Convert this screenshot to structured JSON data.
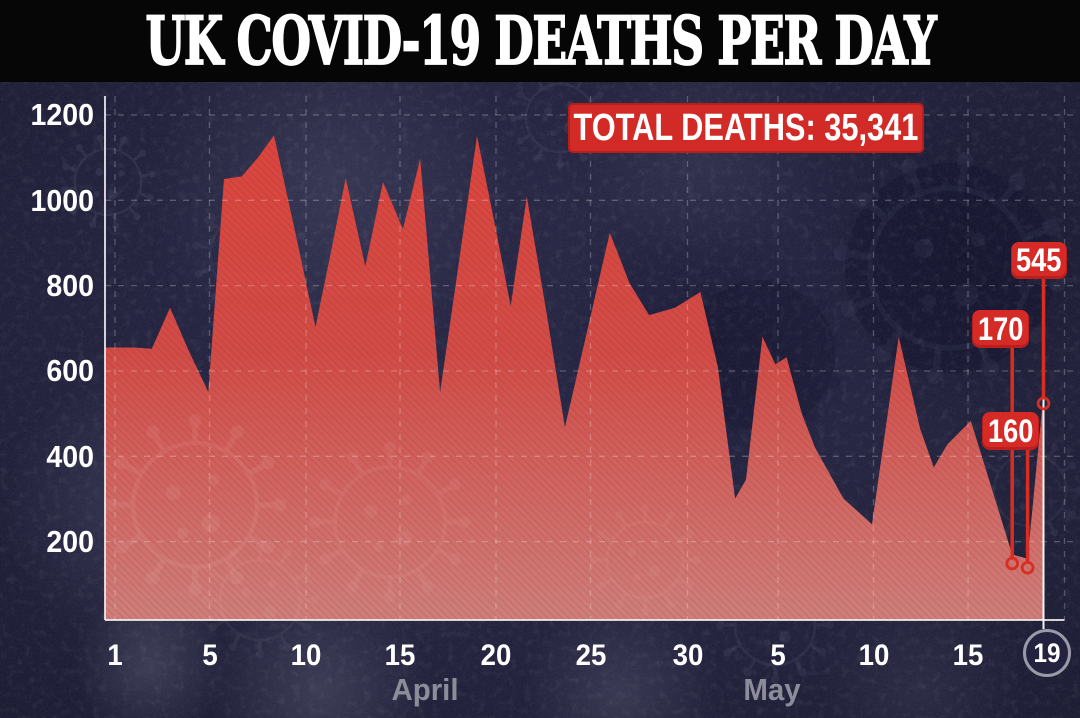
{
  "title": "UK COVID-19 DEATHS PER DAY",
  "total_deaths_label": "TOTAL DEATHS: 35,341",
  "annotations": [
    {
      "label": "545"
    },
    {
      "label": "170"
    },
    {
      "label": "160"
    }
  ],
  "x_axis": {
    "tick_labels": [
      "1",
      "5",
      "10",
      "15",
      "20",
      "25",
      "30",
      "5",
      "10",
      "15"
    ],
    "last_day_label": "19",
    "month_labels": [
      "April",
      "May"
    ]
  },
  "y_axis": {
    "tick_labels": [
      "1200",
      "1000",
      "800",
      "600",
      "400",
      "200"
    ]
  },
  "colors": {
    "background": "#262645",
    "banner": "#060606",
    "area_top": "#da453e",
    "area_bottom": "#ce7f7b",
    "annotation_red": "#d62a27",
    "marker_red": "#da2d22",
    "text_white": "#ffffff",
    "month_grey": "#8c8c9a"
  },
  "chart_data": {
    "type": "area",
    "title": "UK COVID-19 DEATHS PER DAY",
    "subtitle": "TOTAL DEATHS: 35,341",
    "ylim": [
      0,
      1300
    ],
    "grid": true,
    "categories": [
      "Apr 1",
      "Apr 2",
      "Apr 3",
      "Apr 4",
      "Apr 5",
      "Apr 6",
      "Apr 7",
      "Apr 8",
      "Apr 9",
      "Apr 10",
      "Apr 11",
      "Apr 12",
      "Apr 13",
      "Apr 14",
      "Apr 15",
      "Apr 16",
      "Apr 17",
      "Apr 18",
      "Apr 19",
      "Apr 20",
      "Apr 21",
      "Apr 22",
      "Apr 23",
      "Apr 24",
      "Apr 25",
      "Apr 26",
      "Apr 27",
      "Apr 28",
      "Apr 29",
      "Apr 30",
      "May 1",
      "May 2",
      "May 3",
      "May 4",
      "May 5",
      "May 6",
      "May 7",
      "May 8",
      "May 9",
      "May 10",
      "May 11",
      "May 12",
      "May 13",
      "May 14",
      "May 15",
      "May 16",
      "May 17",
      "May 18",
      "May 19"
    ],
    "values": [
      655,
      652,
      748,
      645,
      551,
      1050,
      1056,
      1100,
      1152,
      930,
      703,
      875,
      1052,
      845,
      1043,
      933,
      1097,
      550,
      850,
      1151,
      918,
      752,
      1009,
      740,
      468,
      695,
      924,
      806,
      731,
      748,
      785,
      610,
      301,
      345,
      680,
      616,
      632,
      502,
      420,
      301,
      241,
      680,
      465,
      374,
      428,
      483,
      170,
      160,
      545
    ]
  }
}
